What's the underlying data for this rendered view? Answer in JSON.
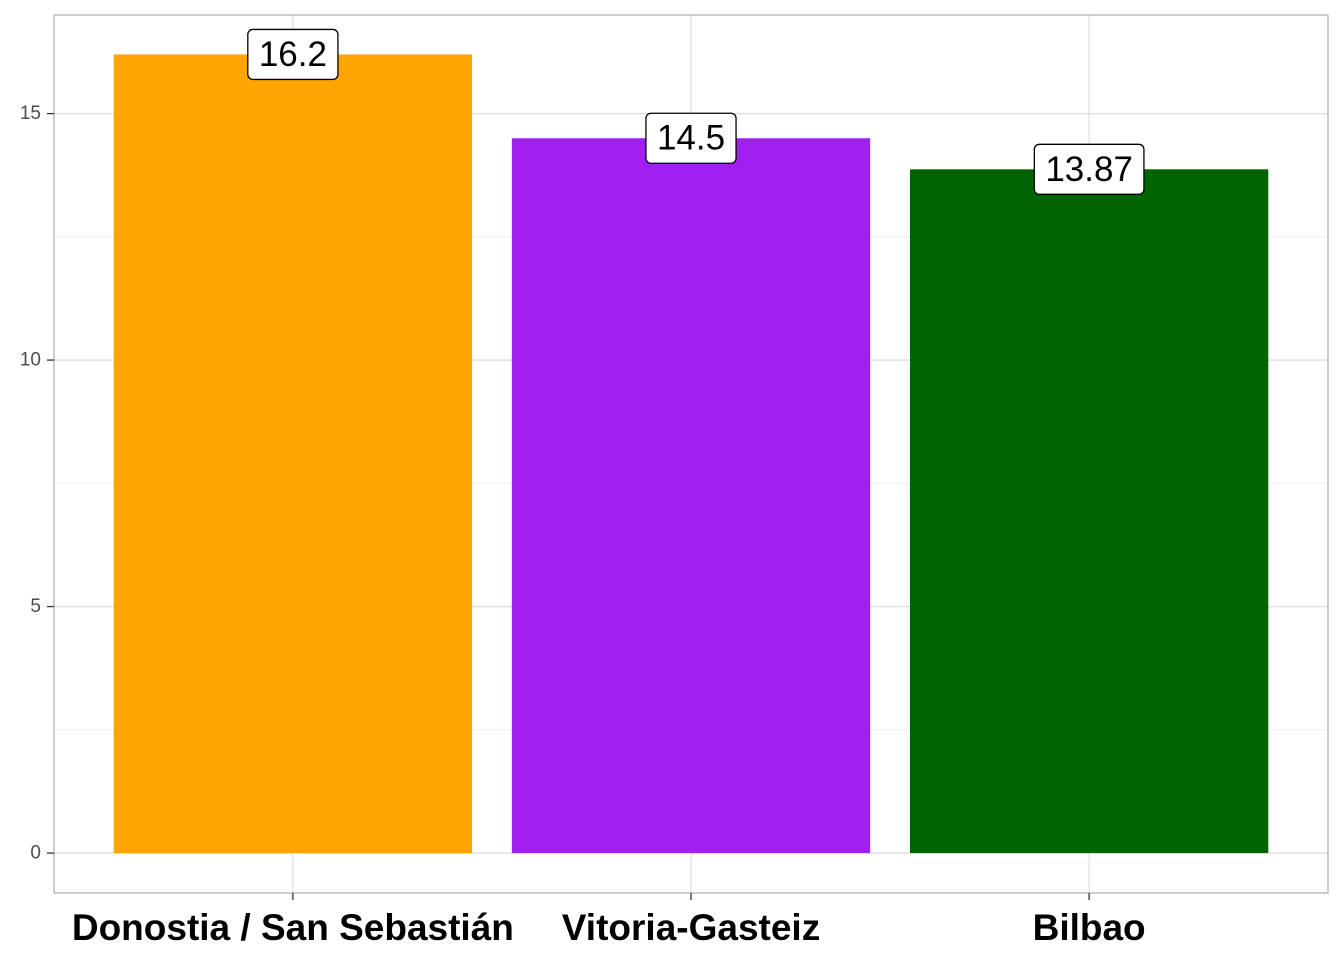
{
  "chart_data": {
    "type": "bar",
    "title": "",
    "xlabel": "",
    "ylabel": "",
    "categories": [
      "Donostia / San Sebastián",
      "Vitoria-Gasteiz",
      "Bilbao"
    ],
    "values": [
      16.2,
      14.5,
      13.87
    ],
    "value_labels": [
      "16.2",
      "14.5",
      "13.87"
    ],
    "colors": [
      "#FFA500",
      "#A020F0",
      "#006400"
    ],
    "ylim": [
      -0.81,
      17.0
    ],
    "yticks": [
      0,
      5,
      10,
      15
    ],
    "ytick_labels": [
      "0",
      "5",
      "10",
      "15"
    ],
    "grid": true,
    "legend": "none"
  }
}
